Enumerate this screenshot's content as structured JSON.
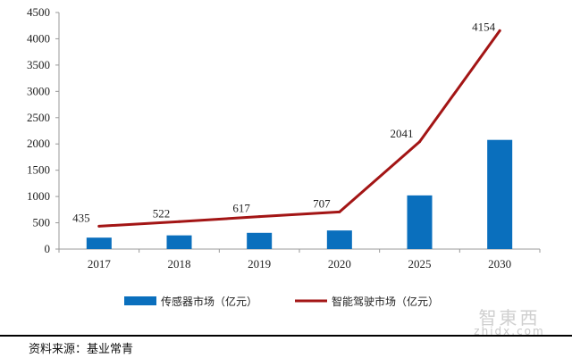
{
  "chart_data": {
    "type": "bar+line",
    "categories": [
      "2017",
      "2018",
      "2019",
      "2020",
      "2025",
      "2030"
    ],
    "ylim": [
      0,
      4500
    ],
    "yticks": [
      0,
      500,
      1000,
      1500,
      2000,
      2500,
      3000,
      3500,
      4000,
      4500
    ],
    "grid": false,
    "legend_position": "bottom",
    "series": [
      {
        "name": "传感器市场（亿元）",
        "type": "bar",
        "color": "#0a6fbd",
        "values": [
          218,
          261,
          309,
          354,
          1021,
          2077
        ]
      },
      {
        "name": "智能驾驶市场（亿元）",
        "type": "line",
        "color": "#a31515",
        "values": [
          435,
          522,
          617,
          707,
          2041,
          4154
        ],
        "data_labels": [
          "435",
          "522",
          "617",
          "707",
          "2041",
          "4154"
        ]
      }
    ]
  },
  "source": {
    "text": "资料来源：基业常青"
  },
  "watermark": {
    "logo_text": "智東西",
    "url_text": "zhidx.com"
  }
}
